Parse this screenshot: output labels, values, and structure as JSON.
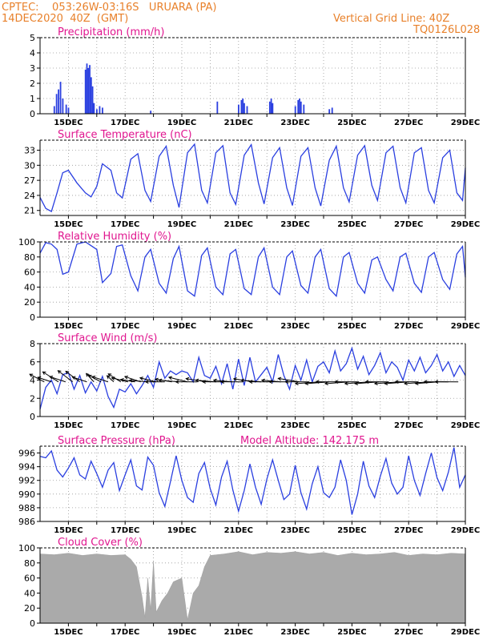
{
  "header": {
    "line1": "CPTEC:    053:26W-03:16S   URUARA (PA)",
    "line2": "14DEC2020  40Z  (GMT)",
    "vgrid": "Vertical Grid Line: 40Z",
    "code": "TQ0126L028"
  },
  "colors": {
    "line": "#2a3fe0",
    "title": "#e0168f",
    "header": "#e8802a",
    "cloud": "#aaaaaa"
  },
  "chart_data": [
    {
      "type": "bar",
      "title": "Precipitation (mm/h)",
      "ylim": [
        0,
        5
      ],
      "yticks": [
        "0",
        "1",
        "2",
        "3",
        "4",
        "5"
      ],
      "xticks": [
        "15DEC",
        "17DEC",
        "19DEC",
        "21DEC",
        "23DEC",
        "25DEC",
        "27DEC",
        "29DEC"
      ],
      "xrange_days": [
        14.0,
        29.0
      ],
      "x": [
        14.5,
        14.58,
        14.65,
        14.72,
        14.8,
        14.92,
        15.0,
        15.6,
        15.65,
        15.7,
        15.75,
        15.8,
        15.85,
        15.9,
        16.0,
        16.1,
        16.2,
        17.9,
        20.25,
        21.0,
        21.1,
        21.15,
        21.2,
        21.3,
        22.1,
        22.15,
        22.2,
        23.0,
        23.1,
        23.15,
        23.2,
        23.3,
        24.2,
        24.3
      ],
      "values": [
        0.5,
        1.3,
        1.6,
        2.1,
        1.0,
        0.6,
        0.4,
        2.9,
        3.3,
        3.0,
        3.2,
        2.4,
        1.8,
        0.7,
        0.3,
        0.5,
        0.4,
        0.2,
        0.8,
        0.6,
        0.9,
        1.0,
        0.7,
        0.5,
        0.8,
        1.0,
        0.7,
        0.5,
        0.9,
        1.0,
        0.8,
        0.6,
        0.3,
        0.4
      ]
    },
    {
      "type": "line",
      "title": "Surface Temperature (nC)",
      "ylim": [
        20,
        35
      ],
      "yticks": [
        "21",
        "24",
        "27",
        "30",
        "33"
      ],
      "xticks": [
        "15DEC",
        "17DEC",
        "19DEC",
        "21DEC",
        "23DEC",
        "25DEC",
        "27DEC",
        "29DEC"
      ],
      "xrange_days": [
        14.0,
        29.0
      ],
      "x": [
        14.0,
        14.2,
        14.4,
        14.6,
        14.8,
        15.0,
        15.3,
        15.6,
        15.8,
        16.0,
        16.2,
        16.5,
        16.7,
        16.9,
        17.2,
        17.45,
        17.7,
        17.9,
        18.2,
        18.45,
        18.7,
        18.9,
        19.2,
        19.45,
        19.7,
        19.9,
        20.2,
        20.45,
        20.7,
        20.9,
        21.2,
        21.45,
        21.7,
        21.9,
        22.2,
        22.45,
        22.7,
        22.9,
        23.2,
        23.45,
        23.7,
        23.9,
        24.2,
        24.45,
        24.7,
        24.9,
        25.2,
        25.45,
        25.7,
        25.9,
        26.2,
        26.45,
        26.7,
        26.9,
        27.2,
        27.45,
        27.7,
        27.9,
        28.2,
        28.45,
        28.7,
        28.9,
        29.0
      ],
      "values": [
        23.6,
        21.4,
        20.8,
        24.5,
        28.5,
        29.0,
        26.5,
        24.5,
        23.7,
        25.8,
        30.3,
        29.0,
        24.5,
        23.5,
        31.2,
        32.3,
        25.0,
        22.8,
        31.8,
        33.8,
        26.0,
        21.6,
        32.5,
        34.2,
        25.0,
        22.5,
        32.5,
        33.9,
        24.5,
        22.2,
        32.0,
        34.1,
        26.5,
        22.3,
        31.5,
        33.5,
        25.5,
        22.0,
        31.8,
        33.5,
        25.5,
        21.9,
        31.0,
        33.8,
        25.5,
        22.7,
        32.0,
        33.9,
        26.0,
        23.0,
        32.5,
        33.8,
        25.5,
        22.5,
        32.5,
        33.5,
        25.0,
        22.5,
        31.5,
        33.0,
        24.5,
        23.0,
        29.5
      ]
    },
    {
      "type": "line",
      "title": "Relative Humidity (%)",
      "ylim": [
        0,
        100
      ],
      "yticks": [
        "0",
        "20",
        "40",
        "60",
        "80",
        "100"
      ],
      "xticks": [
        "15DEC",
        "17DEC",
        "19DEC",
        "21DEC",
        "23DEC",
        "25DEC",
        "27DEC",
        "29DEC"
      ],
      "xrange_days": [
        14.0,
        29.0
      ],
      "x": [
        14.0,
        14.2,
        14.4,
        14.6,
        14.8,
        15.0,
        15.3,
        15.6,
        15.8,
        16.0,
        16.2,
        16.5,
        16.7,
        16.9,
        17.2,
        17.45,
        17.7,
        17.9,
        18.2,
        18.45,
        18.7,
        18.9,
        19.2,
        19.45,
        19.7,
        19.9,
        20.2,
        20.45,
        20.7,
        20.9,
        21.2,
        21.45,
        21.7,
        21.9,
        22.2,
        22.45,
        22.7,
        22.9,
        23.2,
        23.45,
        23.7,
        23.9,
        24.2,
        24.45,
        24.7,
        24.9,
        25.2,
        25.45,
        25.7,
        25.9,
        26.2,
        26.45,
        26.7,
        26.9,
        27.2,
        27.45,
        27.7,
        27.9,
        28.2,
        28.45,
        28.7,
        28.9,
        29.0
      ],
      "values": [
        85,
        99,
        97,
        90,
        57,
        60,
        97,
        100,
        95,
        90,
        46,
        58,
        94,
        96,
        55,
        35,
        80,
        90,
        45,
        32,
        78,
        94,
        35,
        28,
        82,
        92,
        40,
        30,
        84,
        90,
        38,
        30,
        80,
        92,
        40,
        30,
        80,
        88,
        42,
        32,
        80,
        90,
        38,
        28,
        80,
        86,
        45,
        32,
        76,
        80,
        50,
        35,
        80,
        85,
        45,
        33,
        80,
        86,
        50,
        37,
        84,
        94,
        53
      ]
    },
    {
      "type": "line",
      "title": "Surface Wind (m/s)",
      "ylim": [
        0,
        8
      ],
      "yticks": [
        "0",
        "2",
        "4",
        "6",
        "8"
      ],
      "xticks": [
        "15DEC",
        "17DEC",
        "19DEC",
        "21DEC",
        "23DEC",
        "25DEC",
        "27DEC",
        "29DEC"
      ],
      "xrange_days": [
        14.0,
        29.0
      ],
      "x": [
        14.0,
        14.2,
        14.4,
        14.6,
        14.8,
        15.0,
        15.2,
        15.4,
        15.6,
        15.8,
        16.0,
        16.2,
        16.4,
        16.6,
        16.8,
        17.0,
        17.2,
        17.4,
        17.6,
        17.8,
        18.0,
        18.2,
        18.4,
        18.6,
        18.8,
        19.0,
        19.2,
        19.4,
        19.6,
        19.8,
        20.0,
        20.2,
        20.4,
        20.6,
        20.8,
        21.0,
        21.2,
        21.4,
        21.6,
        21.8,
        22.0,
        22.2,
        22.4,
        22.6,
        22.8,
        23.0,
        23.2,
        23.4,
        23.6,
        23.8,
        24.0,
        24.2,
        24.4,
        24.6,
        24.8,
        25.0,
        25.2,
        25.4,
        25.6,
        25.8,
        26.0,
        26.2,
        26.4,
        26.6,
        26.8,
        27.0,
        27.2,
        27.4,
        27.6,
        27.8,
        28.0,
        28.2,
        28.4,
        28.6,
        28.8,
        29.0
      ],
      "values": [
        0.8,
        3.2,
        4.0,
        2.5,
        4.6,
        4.8,
        3.0,
        4.5,
        2.6,
        3.8,
        2.8,
        4.4,
        2.2,
        1.0,
        3.0,
        2.7,
        3.6,
        2.5,
        3.4,
        4.5,
        3.2,
        6.0,
        4.2,
        5.0,
        4.6,
        5.0,
        4.8,
        3.8,
        6.5,
        4.5,
        4.2,
        5.5,
        3.6,
        5.8,
        3.0,
        6.3,
        3.4,
        6.5,
        3.8,
        4.6,
        5.4,
        3.8,
        6.8,
        4.5,
        3.0,
        5.6,
        4.0,
        6.2,
        3.8,
        5.5,
        6.0,
        4.8,
        7.2,
        5.0,
        5.8,
        7.5,
        5.2,
        6.6,
        4.6,
        5.6,
        7.0,
        4.8,
        6.0,
        5.4,
        4.0,
        6.2,
        5.0,
        6.5,
        4.8,
        5.6,
        6.8,
        5.0,
        6.0,
        4.4,
        5.6,
        4.5
      ],
      "barbs_x": [
        14.15,
        14.4,
        14.65,
        14.9,
        15.15,
        15.4,
        15.65,
        15.9,
        16.15,
        16.4,
        16.6,
        16.85,
        17.1,
        17.35,
        17.55,
        17.8,
        18.1,
        18.4,
        18.65,
        18.9,
        19.2,
        19.55,
        19.85,
        20.2,
        20.5,
        20.8,
        21.15,
        21.5,
        21.8,
        22.15,
        22.5,
        22.8,
        23.15,
        23.5,
        23.85,
        24.2,
        24.55,
        24.9,
        25.25,
        25.6,
        25.95,
        26.3,
        26.65,
        27.0,
        27.35,
        27.7,
        28.05,
        28.4,
        28.75
      ],
      "barbs_dir_deg": [
        70,
        60,
        75,
        60,
        80,
        80,
        60,
        90,
        70,
        60,
        85,
        75,
        55,
        50,
        60,
        45,
        55,
        40,
        50,
        45,
        55,
        40,
        50,
        45,
        40,
        45,
        40,
        50,
        45,
        40,
        45,
        40,
        50,
        40,
        35,
        35,
        40,
        35,
        40,
        35,
        35,
        40,
        35,
        35,
        40,
        35,
        35,
        40,
        40
      ],
      "barbs_speed": [
        3.5,
        3.0,
        4.0,
        3.5,
        4.0,
        3.8,
        3.2,
        2.5,
        3.0,
        3.5,
        2.0,
        3.2,
        3.5,
        3.0,
        3.5,
        3.8,
        3.5,
        4.0,
        3.5,
        4.2,
        4.0,
        4.5,
        4.2,
        4.2,
        4.5,
        4.0,
        4.5,
        4.0,
        4.2,
        4.5,
        4.0,
        4.2,
        4.5,
        5.0,
        5.0,
        5.0,
        4.8,
        5.0,
        5.0,
        5.0,
        5.0,
        4.8,
        5.0,
        5.0,
        4.8,
        5.0,
        4.8,
        5.0,
        4.8
      ]
    },
    {
      "type": "line",
      "title": "Surface Pressure (hPa)",
      "subtitle": "Model Altitude: 142.175 m",
      "ylim": [
        986,
        997
      ],
      "yticks": [
        "986",
        "988",
        "990",
        "992",
        "994",
        "996"
      ],
      "xticks": [
        "15DEC",
        "17DEC",
        "19DEC",
        "21DEC",
        "23DEC",
        "25DEC",
        "27DEC",
        "29DEC"
      ],
      "xrange_days": [
        14.0,
        29.0
      ],
      "x": [
        14.0,
        14.2,
        14.4,
        14.6,
        14.8,
        15.0,
        15.2,
        15.4,
        15.6,
        15.8,
        16.0,
        16.2,
        16.4,
        16.6,
        16.8,
        17.0,
        17.2,
        17.4,
        17.6,
        17.8,
        18.0,
        18.2,
        18.4,
        18.6,
        18.8,
        19.0,
        19.2,
        19.4,
        19.6,
        19.8,
        20.0,
        20.2,
        20.4,
        20.6,
        20.8,
        21.0,
        21.2,
        21.4,
        21.6,
        21.8,
        22.0,
        22.2,
        22.4,
        22.6,
        22.8,
        23.0,
        23.2,
        23.4,
        23.6,
        23.8,
        24.0,
        24.2,
        24.4,
        24.6,
        24.8,
        25.0,
        25.2,
        25.4,
        25.6,
        25.8,
        26.0,
        26.2,
        26.4,
        26.6,
        26.8,
        27.0,
        27.2,
        27.4,
        27.6,
        27.8,
        28.0,
        28.2,
        28.4,
        28.6,
        28.8,
        29.0
      ],
      "values": [
        995.5,
        995.3,
        996.3,
        993.5,
        992.5,
        993.8,
        995.3,
        992.8,
        992.2,
        994.8,
        993.0,
        991.0,
        993.5,
        994.6,
        990.5,
        992.8,
        995.0,
        991.2,
        990.6,
        995.4,
        994.2,
        990.2,
        988.2,
        991.8,
        995.6,
        992.0,
        989.5,
        988.8,
        993.0,
        994.6,
        990.8,
        988.4,
        992.5,
        994.8,
        990.6,
        987.5,
        990.5,
        994.4,
        991.0,
        988.5,
        992.2,
        995.0,
        992.0,
        989.2,
        990.0,
        994.2,
        990.2,
        987.8,
        991.5,
        994.0,
        990.2,
        989.5,
        991.0,
        995.0,
        992.0,
        987.0,
        990.0,
        994.8,
        991.2,
        989.5,
        992.6,
        995.2,
        991.6,
        990.0,
        991.0,
        995.6,
        992.0,
        989.8,
        993.0,
        996.0,
        992.4,
        990.5,
        993.2,
        996.8,
        991.0,
        992.8
      ]
    },
    {
      "type": "bar",
      "title": "Cloud Cover (%)",
      "ylim": [
        0,
        100
      ],
      "yticks": [
        "0",
        "20",
        "40",
        "60",
        "80",
        "100"
      ],
      "xticks": [
        "15DEC",
        "17DEC",
        "19DEC",
        "21DEC",
        "23DEC",
        "25DEC",
        "27DEC",
        "29DEC"
      ],
      "xrange_days": [
        14.0,
        29.0
      ],
      "x": [
        14.0,
        14.5,
        15.0,
        15.5,
        16.0,
        16.5,
        17.0,
        17.2,
        17.4,
        17.6,
        17.7,
        17.8,
        17.9,
        18.0,
        18.1,
        18.3,
        18.5,
        18.7,
        19.0,
        19.2,
        19.4,
        19.6,
        19.8,
        20.0,
        20.5,
        21.0,
        21.5,
        22.0,
        22.5,
        23.0,
        23.5,
        24.0,
        24.5,
        25.0,
        25.5,
        26.0,
        26.5,
        27.0,
        27.5,
        28.0,
        28.5,
        29.0
      ],
      "values": [
        92,
        91,
        93,
        90,
        92,
        90,
        91,
        85,
        75,
        35,
        8,
        60,
        18,
        82,
        15,
        30,
        40,
        55,
        60,
        5,
        40,
        50,
        75,
        90,
        92,
        95,
        91,
        94,
        93,
        95,
        92,
        94,
        90,
        93,
        91,
        92,
        94,
        90,
        92,
        91,
        93,
        92
      ]
    }
  ]
}
